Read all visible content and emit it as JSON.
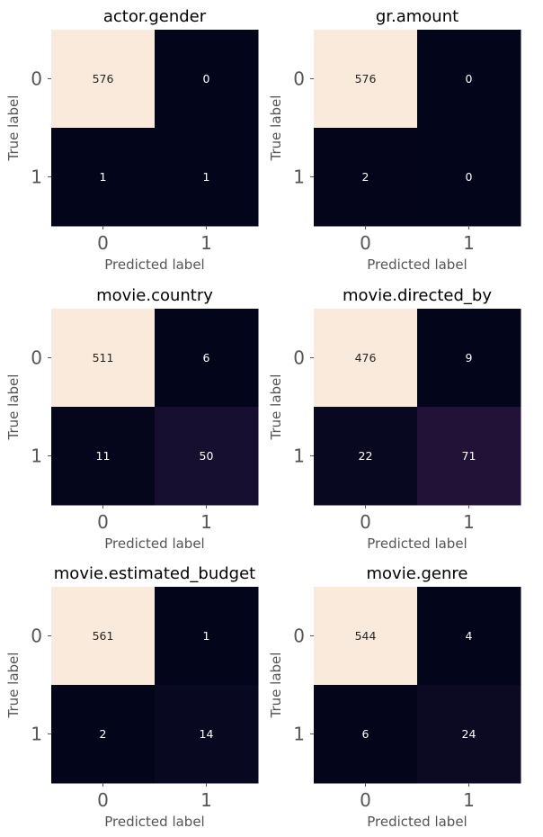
{
  "colors": {
    "high": "#faeadc",
    "mid": "#701f57",
    "low": "#03051a",
    "text_on_dark": "#ffffff",
    "text_on_light": "#262626",
    "label_text": "#555555"
  },
  "chart_data": [
    {
      "type": "heatmap",
      "title": "actor.gender",
      "xlabel": "Predicted label",
      "ylabel": "True label",
      "xticks": [
        "0",
        "1"
      ],
      "yticks": [
        "0",
        "1"
      ],
      "matrix": [
        [
          576,
          0
        ],
        [
          1,
          1
        ]
      ],
      "colorbar": false
    },
    {
      "type": "heatmap",
      "title": "gr.amount",
      "xlabel": "Predicted label",
      "ylabel": "True label",
      "xticks": [
        "0",
        "1"
      ],
      "yticks": [
        "0",
        "1"
      ],
      "matrix": [
        [
          576,
          0
        ],
        [
          2,
          0
        ]
      ],
      "colorbar": false
    },
    {
      "type": "heatmap",
      "title": "movie.country",
      "xlabel": "Predicted label",
      "ylabel": "True label",
      "xticks": [
        "0",
        "1"
      ],
      "yticks": [
        "0",
        "1"
      ],
      "matrix": [
        [
          511,
          6
        ],
        [
          11,
          50
        ]
      ],
      "colorbar": false
    },
    {
      "type": "heatmap",
      "title": "movie.directed_by",
      "xlabel": "Predicted label",
      "ylabel": "True label",
      "xticks": [
        "0",
        "1"
      ],
      "yticks": [
        "0",
        "1"
      ],
      "matrix": [
        [
          476,
          9
        ],
        [
          22,
          71
        ]
      ],
      "colorbar": false
    },
    {
      "type": "heatmap",
      "title": "movie.estimated_budget",
      "xlabel": "Predicted label",
      "ylabel": "True label",
      "xticks": [
        "0",
        "1"
      ],
      "yticks": [
        "0",
        "1"
      ],
      "matrix": [
        [
          561,
          1
        ],
        [
          2,
          14
        ]
      ],
      "colorbar": false
    },
    {
      "type": "heatmap",
      "title": "movie.genre",
      "xlabel": "Predicted label",
      "ylabel": "True label",
      "xticks": [
        "0",
        "1"
      ],
      "yticks": [
        "0",
        "1"
      ],
      "matrix": [
        [
          544,
          4
        ],
        [
          6,
          24
        ]
      ],
      "colorbar": false
    }
  ]
}
